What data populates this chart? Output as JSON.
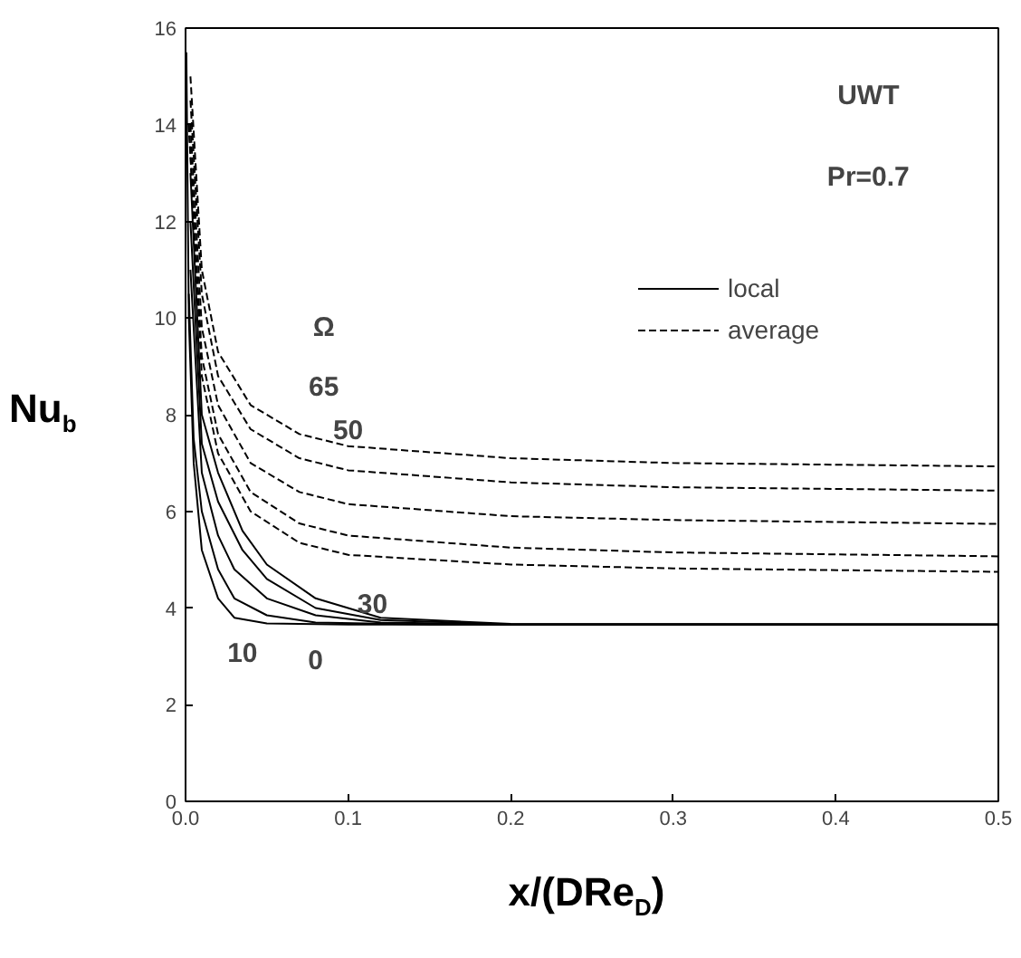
{
  "chart_data": {
    "type": "line",
    "xlabel": "x/(DRe$_{D}$)",
    "ylabel": "Nu$_{b}$",
    "xlim": [
      0,
      0.5
    ],
    "ylim": [
      0,
      16
    ],
    "xticks": [
      {
        "value": 0,
        "label": "0.0"
      },
      0.1,
      0.2,
      0.3,
      0.4,
      0.5
    ],
    "yticks": [
      0,
      2,
      4,
      6,
      8,
      10,
      12,
      14,
      16
    ],
    "grid": false,
    "legend": "top right",
    "marker": "none",
    "series": [
      {
        "name": "local",
        "color": "#000000",
        "line_style": "solid",
        "x": [
          0.0005,
          0.002,
          0.005,
          0.01,
          0.02,
          0.03,
          0.05,
          0.1,
          0.5
        ],
        "values": [
          15.5,
          10,
          7,
          5.2,
          4.2,
          3.8,
          3.68,
          3.66,
          3.66
        ]
      },
      {
        "color": "#000000",
        "line_style": "solid",
        "x": [
          0.002,
          0.005,
          0.01,
          0.02,
          0.03,
          0.05,
          0.08,
          0.15,
          0.5
        ],
        "values": [
          10.5,
          7.5,
          6.0,
          4.8,
          4.2,
          3.85,
          3.7,
          3.66,
          3.66
        ]
      },
      {
        "color": "#000000",
        "line_style": "solid",
        "x": [
          0.003,
          0.01,
          0.02,
          0.03,
          0.05,
          0.08,
          0.12,
          0.2,
          0.5
        ],
        "values": [
          11,
          6.8,
          5.5,
          4.8,
          4.2,
          3.85,
          3.7,
          3.66,
          3.66
        ]
      },
      {
        "color": "#000000",
        "line_style": "solid",
        "x": [
          0.003,
          0.01,
          0.02,
          0.035,
          0.05,
          0.08,
          0.12,
          0.2,
          0.5
        ],
        "values": [
          12,
          7.4,
          6.2,
          5.2,
          4.6,
          4.0,
          3.75,
          3.66,
          3.66
        ]
      },
      {
        "color": "#000000",
        "line_style": "solid",
        "x": [
          0.003,
          0.01,
          0.02,
          0.035,
          0.05,
          0.08,
          0.12,
          0.2,
          0.5
        ],
        "values": [
          13,
          8,
          6.8,
          5.6,
          4.9,
          4.2,
          3.8,
          3.67,
          3.66
        ]
      },
      {
        "name": "average",
        "color": "#000000",
        "line_style": "dashed",
        "x": [
          0.002,
          0.01,
          0.02,
          0.04,
          0.07,
          0.1,
          0.2,
          0.3,
          0.5
        ],
        "values": [
          14,
          8.8,
          7.2,
          6.0,
          5.35,
          5.1,
          4.9,
          4.82,
          4.75
        ]
      },
      {
        "color": "#000000",
        "line_style": "dashed",
        "x": [
          0.002,
          0.01,
          0.02,
          0.04,
          0.07,
          0.1,
          0.2,
          0.3,
          0.5
        ],
        "values": [
          14,
          9.2,
          7.6,
          6.4,
          5.75,
          5.5,
          5.25,
          5.15,
          5.07
        ]
      },
      {
        "color": "#000000",
        "line_style": "dashed",
        "x": [
          0.003,
          0.01,
          0.02,
          0.04,
          0.07,
          0.1,
          0.2,
          0.3,
          0.5
        ],
        "values": [
          14,
          9.8,
          8.2,
          7.0,
          6.4,
          6.15,
          5.9,
          5.82,
          5.74
        ]
      },
      {
        "color": "#000000",
        "line_style": "dashed",
        "x": [
          0.003,
          0.01,
          0.02,
          0.04,
          0.07,
          0.1,
          0.2,
          0.3,
          0.5
        ],
        "values": [
          14.5,
          10.5,
          8.8,
          7.7,
          7.1,
          6.85,
          6.6,
          6.5,
          6.43
        ]
      },
      {
        "color": "#000000",
        "line_style": "dashed",
        "x": [
          0.003,
          0.01,
          0.02,
          0.04,
          0.07,
          0.1,
          0.2,
          0.3,
          0.5
        ],
        "values": [
          15,
          11,
          9.3,
          8.2,
          7.6,
          7.35,
          7.1,
          7.0,
          6.93
        ]
      }
    ],
    "annotations": [
      "UWT",
      "Pr=0.7",
      "Ω",
      "65",
      "50",
      "30",
      "10",
      "0"
    ]
  }
}
